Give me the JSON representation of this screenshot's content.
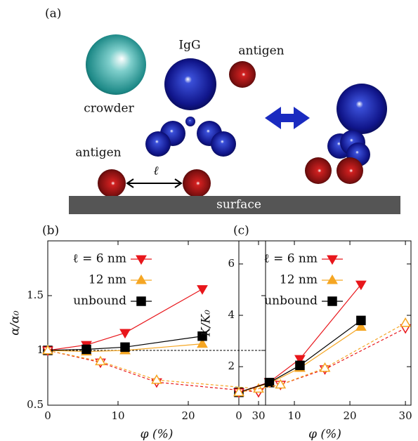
{
  "diagram": {
    "panel_label": "(a)",
    "igg": "IgG",
    "antigen_top": "antigen",
    "crowder": "crowder",
    "antigen_bottom": "antigen",
    "distance": "ℓ",
    "surface": "surface"
  },
  "chart_data": [
    {
      "type": "line",
      "panel_label": "(b)",
      "ylabel": "α/α₀",
      "xlabel": "φ (%)",
      "xlim": [
        0,
        31
      ],
      "ylim": [
        0.5,
        2.0
      ],
      "xticks": [
        0,
        10,
        20,
        30
      ],
      "yticks": [
        0.5,
        1,
        1.5
      ],
      "reference_line": 1,
      "legend": "upper left",
      "series": [
        {
          "name": "ℓ = 6 nm",
          "color": "#e8161b",
          "marker": "down",
          "filled": true,
          "x": [
            0,
            5.5,
            11,
            22
          ],
          "values": [
            1.0,
            1.05,
            1.16,
            1.56
          ]
        },
        {
          "name": "12 nm",
          "color": "#f5a623",
          "marker": "up",
          "filled": true,
          "x": [
            0,
            5.5,
            11,
            22
          ],
          "values": [
            1.0,
            0.99,
            1.0,
            1.06
          ]
        },
        {
          "name": "unbound",
          "color": "#000000",
          "marker": "square",
          "filled": true,
          "x": [
            0,
            5.5,
            11,
            22
          ],
          "values": [
            1.0,
            1.01,
            1.03,
            1.13
          ]
        },
        {
          "color": "#e8161b",
          "marker": "down",
          "filled": false,
          "dashed": true,
          "x": [
            0,
            7.5,
            15.5,
            30
          ],
          "values": [
            1.0,
            0.89,
            0.71,
            0.62
          ]
        },
        {
          "color": "#f5a623",
          "marker": "up",
          "filled": false,
          "dashed": true,
          "x": [
            0,
            7.5,
            15.5,
            30
          ],
          "values": [
            1.0,
            0.9,
            0.73,
            0.65
          ]
        }
      ]
    },
    {
      "type": "line",
      "panel_label": "(c)",
      "ylabel": "K/K₀",
      "xlabel": "φ (%)",
      "xlim": [
        0,
        31
      ],
      "ylim": [
        0.5,
        6.9
      ],
      "xticks": [
        0,
        10,
        20,
        30
      ],
      "yticks": [
        2,
        4,
        6
      ],
      "legend": "upper left",
      "series": [
        {
          "name": "ℓ = 6 nm",
          "color": "#e8161b",
          "marker": "down",
          "filled": true,
          "x": [
            0,
            5.5,
            11,
            22
          ],
          "values": [
            1.0,
            1.4,
            2.3,
            5.2
          ]
        },
        {
          "name": "12 nm",
          "color": "#f5a623",
          "marker": "up",
          "filled": true,
          "x": [
            0,
            5.5,
            11,
            22
          ],
          "values": [
            1.0,
            1.35,
            1.95,
            3.55
          ]
        },
        {
          "name": "unbound",
          "color": "#000000",
          "marker": "square",
          "filled": true,
          "x": [
            0,
            5.5,
            11,
            22
          ],
          "values": [
            1.0,
            1.38,
            2.05,
            3.8
          ]
        },
        {
          "color": "#e8161b",
          "marker": "down",
          "filled": false,
          "dashed": true,
          "x": [
            0,
            7.5,
            15.5,
            30
          ],
          "values": [
            1.0,
            1.3,
            1.9,
            3.5
          ]
        },
        {
          "color": "#f5a623",
          "marker": "up",
          "filled": false,
          "dashed": true,
          "x": [
            0,
            7.5,
            15.5,
            30
          ],
          "values": [
            1.0,
            1.3,
            1.95,
            3.7
          ]
        }
      ]
    }
  ]
}
